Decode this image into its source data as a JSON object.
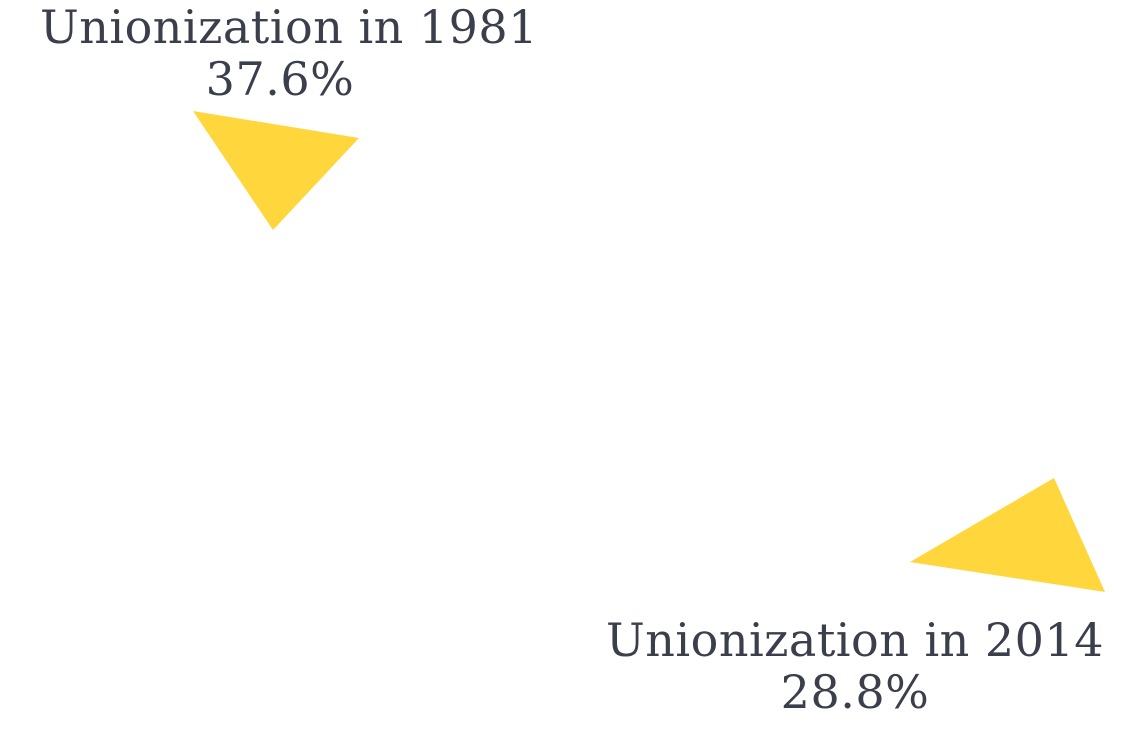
{
  "annotations": [
    {
      "id": "1981",
      "title": "Unionization in 1981",
      "value": "37.6%"
    },
    {
      "id": "2014",
      "title": "Unionization in 2014",
      "value": "28.8%"
    }
  ],
  "colors": {
    "pointer": "#FFD63C",
    "text": "#3a3f4b",
    "background": "#ffffff"
  }
}
